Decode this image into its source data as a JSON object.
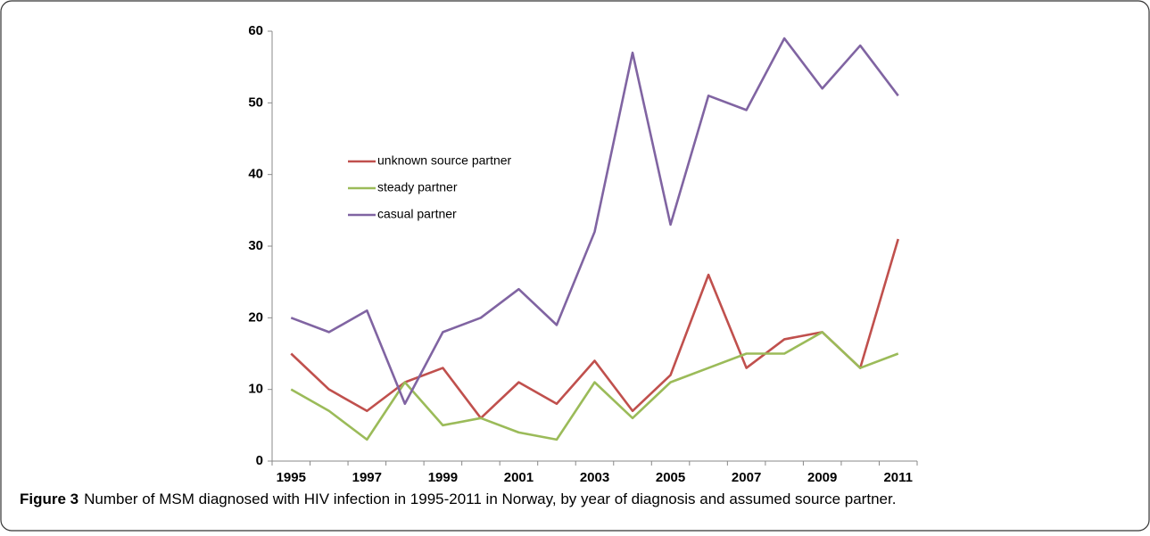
{
  "chart_data": {
    "type": "line",
    "caption_label": "Figure 3",
    "caption": "Number of MSM diagnosed with HIV infection in 1995-2011 in Norway, by year of diagnosis and assumed source partner.",
    "categories": [
      "1995",
      null,
      "1997",
      null,
      "1999",
      null,
      "2001",
      null,
      "2003",
      null,
      "2005",
      null,
      "2007",
      null,
      "2009",
      null,
      "2011"
    ],
    "series": [
      {
        "name": "unknown source partner",
        "color": "#c0504d",
        "values": [
          15,
          10,
          7,
          11,
          13,
          6,
          11,
          8,
          14,
          7,
          12,
          26,
          13,
          17,
          18,
          13,
          31
        ]
      },
      {
        "name": "steady partner",
        "color": "#9bbb59",
        "values": [
          10,
          7,
          3,
          11,
          5,
          6,
          4,
          3,
          11,
          6,
          11,
          13,
          15,
          15,
          18,
          13,
          15
        ]
      },
      {
        "name": "casual partner",
        "color": "#8064a2",
        "values": [
          20,
          18,
          21,
          8,
          18,
          20,
          24,
          19,
          32,
          57,
          33,
          51,
          49,
          59,
          52,
          58,
          51
        ]
      }
    ],
    "ylim": [
      0,
      60
    ],
    "yticks": [
      0,
      10,
      20,
      30,
      40,
      50,
      60
    ],
    "grid": false,
    "legend": "upper-left"
  }
}
